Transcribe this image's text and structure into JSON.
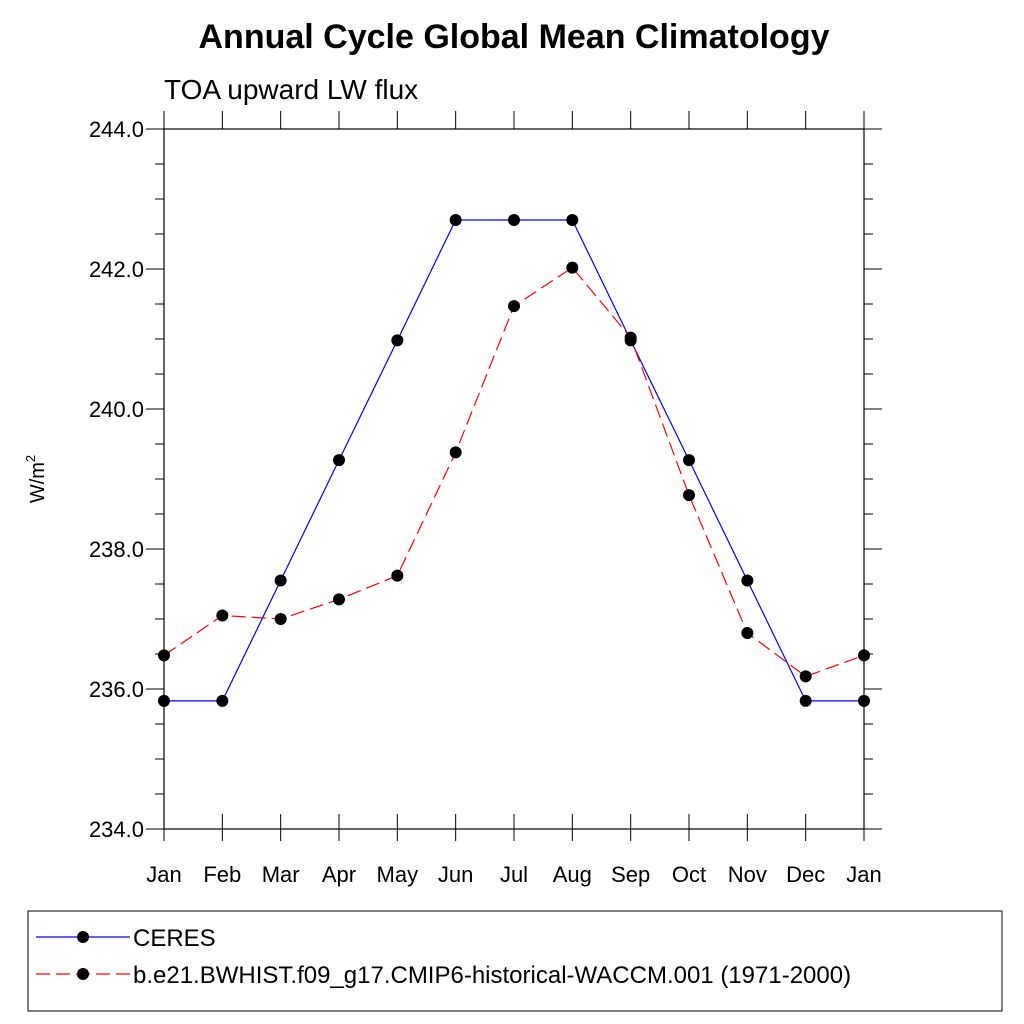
{
  "chart_data": {
    "type": "line",
    "title": "Annual Cycle Global Mean Climatology",
    "subtitle": "TOA upward LW flux",
    "xlabel": "",
    "ylabel": "W/m",
    "ylabel_superscript": "2",
    "categories": [
      "Jan",
      "Feb",
      "Mar",
      "Apr",
      "May",
      "Jun",
      "Jul",
      "Aug",
      "Sep",
      "Oct",
      "Nov",
      "Dec",
      "Jan"
    ],
    "ylim": [
      234.0,
      244.0
    ],
    "yticks": [
      "234.0",
      "236.0",
      "238.0",
      "240.0",
      "242.0",
      "244.0"
    ],
    "grid": false,
    "legend_position": "bottom",
    "series": [
      {
        "name": "CERES",
        "color": "#0000ff",
        "line_style": "solid",
        "marker": "filled-circle",
        "values": [
          235.83,
          235.83,
          237.55,
          239.27,
          240.98,
          242.7,
          242.7,
          242.7,
          240.98,
          239.27,
          237.55,
          235.83,
          235.83
        ]
      },
      {
        "name": "b.e21.BWHIST.f09_g17.CMIP6-historical-WACCM.001 (1971-2000)",
        "color": "#ff0000",
        "line_style": "dashed",
        "marker": "filled-circle",
        "values": [
          236.48,
          237.05,
          237.0,
          237.28,
          237.62,
          239.38,
          241.47,
          242.02,
          241.02,
          238.77,
          236.8,
          236.18,
          236.48
        ]
      }
    ]
  }
}
